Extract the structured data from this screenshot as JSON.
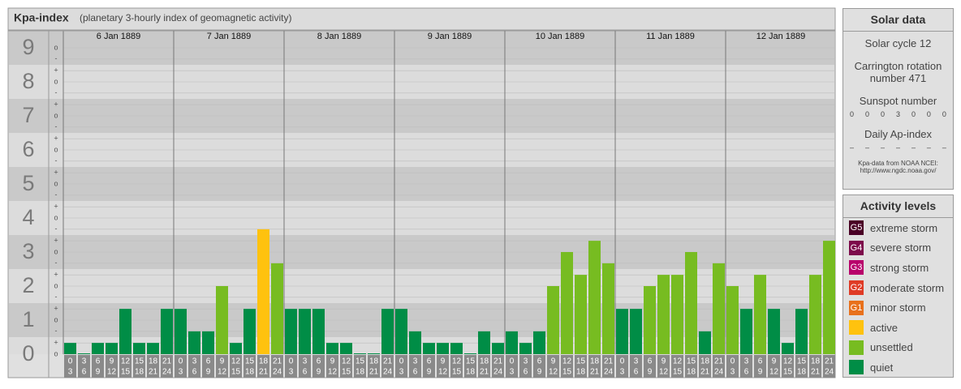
{
  "title": "Kpa-index",
  "subtitle": "(planetary 3-hourly index of geomagnetic activity)",
  "chart_data": {
    "type": "bar",
    "hour_starts": [
      0,
      3,
      6,
      9,
      12,
      15,
      18,
      21
    ],
    "hour_ends": [
      3,
      6,
      9,
      12,
      15,
      18,
      21,
      24
    ],
    "days": [
      {
        "date": "6 Jan 1889",
        "values": [
          0.33,
          0,
          0.33,
          0.33,
          1.33,
          0.33,
          0.33,
          1.33
        ],
        "colors": [
          "#008d46",
          "#008d46",
          "#008d46",
          "#008d46",
          "#008d46",
          "#008d46",
          "#008d46",
          "#008d46"
        ]
      },
      {
        "date": "7 Jan 1889",
        "values": [
          1.33,
          0.67,
          0.67,
          2,
          0.33,
          1.33,
          3.67,
          2.67
        ],
        "colors": [
          "#008d46",
          "#008d46",
          "#008d46",
          "#77bc21",
          "#008d46",
          "#008d46",
          "#ffc20e",
          "#77bc21"
        ]
      },
      {
        "date": "8 Jan 1889",
        "values": [
          1.33,
          1.33,
          1.33,
          0.33,
          0.33,
          0,
          0,
          1.33
        ],
        "colors": [
          "#008d46",
          "#008d46",
          "#008d46",
          "#008d46",
          "#008d46",
          "#008d46",
          "#008d46",
          "#008d46"
        ]
      },
      {
        "date": "9 Jan 1889",
        "values": [
          1.33,
          0.67,
          0.33,
          0.33,
          0.33,
          0,
          0.67,
          0.33
        ],
        "colors": [
          "#008d46",
          "#008d46",
          "#008d46",
          "#008d46",
          "#008d46",
          "#008d46",
          "#008d46",
          "#008d46"
        ]
      },
      {
        "date": "10 Jan 1889",
        "values": [
          0.67,
          0.33,
          0.67,
          2,
          3,
          2.33,
          3.33,
          2.67
        ],
        "colors": [
          "#008d46",
          "#008d46",
          "#008d46",
          "#77bc21",
          "#77bc21",
          "#77bc21",
          "#77bc21",
          "#77bc21"
        ]
      },
      {
        "date": "11 Jan 1889",
        "values": [
          1.33,
          1.33,
          2,
          2.33,
          2.33,
          3,
          0.67,
          2.67
        ],
        "colors": [
          "#008d46",
          "#008d46",
          "#77bc21",
          "#77bc21",
          "#77bc21",
          "#77bc21",
          "#008d46",
          "#77bc21"
        ]
      },
      {
        "date": "12 Jan 1889",
        "values": [
          2,
          1.33,
          2.33,
          1.33,
          0.33,
          1.33,
          2.33,
          3.33
        ],
        "colors": [
          "#77bc21",
          "#008d46",
          "#77bc21",
          "#008d46",
          "#008d46",
          "#008d46",
          "#77bc21",
          "#77bc21"
        ]
      }
    ],
    "ylim": [
      0,
      9.5
    ],
    "yticks": [
      0,
      1,
      2,
      3,
      4,
      5,
      6,
      7,
      8,
      9
    ],
    "minor_ticks": [
      {
        "value": 9,
        "label": "o"
      },
      {
        "value": 8.67,
        "label": "-"
      },
      {
        "value": 8.33,
        "label": "+"
      },
      {
        "value": 8,
        "label": "o"
      },
      {
        "value": 7.67,
        "label": "-"
      },
      {
        "value": 7.33,
        "label": "+"
      },
      {
        "value": 7,
        "label": "o"
      },
      {
        "value": 6.67,
        "label": "-"
      },
      {
        "value": 6.33,
        "label": "+"
      },
      {
        "value": 6,
        "label": "o"
      },
      {
        "value": 5.67,
        "label": "-"
      },
      {
        "value": 5.33,
        "label": "+"
      },
      {
        "value": 5,
        "label": "o"
      },
      {
        "value": 4.67,
        "label": "-"
      },
      {
        "value": 4.33,
        "label": "+"
      },
      {
        "value": 4,
        "label": "o"
      },
      {
        "value": 3.67,
        "label": "-"
      },
      {
        "value": 3.33,
        "label": "+"
      },
      {
        "value": 3,
        "label": "o"
      },
      {
        "value": 2.67,
        "label": "-"
      },
      {
        "value": 2.33,
        "label": "+"
      },
      {
        "value": 2,
        "label": "o"
      },
      {
        "value": 1.67,
        "label": "-"
      },
      {
        "value": 1.33,
        "label": "+"
      },
      {
        "value": 1,
        "label": "o"
      },
      {
        "value": 0.67,
        "label": "-"
      },
      {
        "value": 0.33,
        "label": "+"
      },
      {
        "value": 0,
        "label": "o"
      }
    ]
  },
  "solar_data": {
    "title": "Solar data",
    "cycle": "Solar cycle 12",
    "carrington": "Carrington rotation number 471",
    "sunspot_title": "Sunspot number",
    "sunspot_numbers": [
      0,
      0,
      0,
      3,
      0,
      0,
      0
    ],
    "ap_title": "Daily Ap-index",
    "ap_values": [
      "–",
      "–",
      "–",
      "–",
      "–",
      "–",
      "–"
    ],
    "source": "Kpa-data from NOAA NCEI:",
    "source_url": "http://www.ngdc.noaa.gov/"
  },
  "activity_levels": {
    "title": "Activity levels",
    "items": [
      {
        "code": "G5",
        "label": "extreme storm",
        "color": "#4a0025"
      },
      {
        "code": "G4",
        "label": "severe storm",
        "color": "#7d0a4b"
      },
      {
        "code": "G3",
        "label": "strong storm",
        "color": "#b8006b"
      },
      {
        "code": "G2",
        "label": "moderate storm",
        "color": "#df3b26"
      },
      {
        "code": "G1",
        "label": "minor storm",
        "color": "#e8711c"
      },
      {
        "label": "active",
        "color": "#ffc20e"
      },
      {
        "label": "unsettled",
        "color": "#77bc21"
      },
      {
        "label": "quiet",
        "color": "#008d46"
      }
    ]
  }
}
